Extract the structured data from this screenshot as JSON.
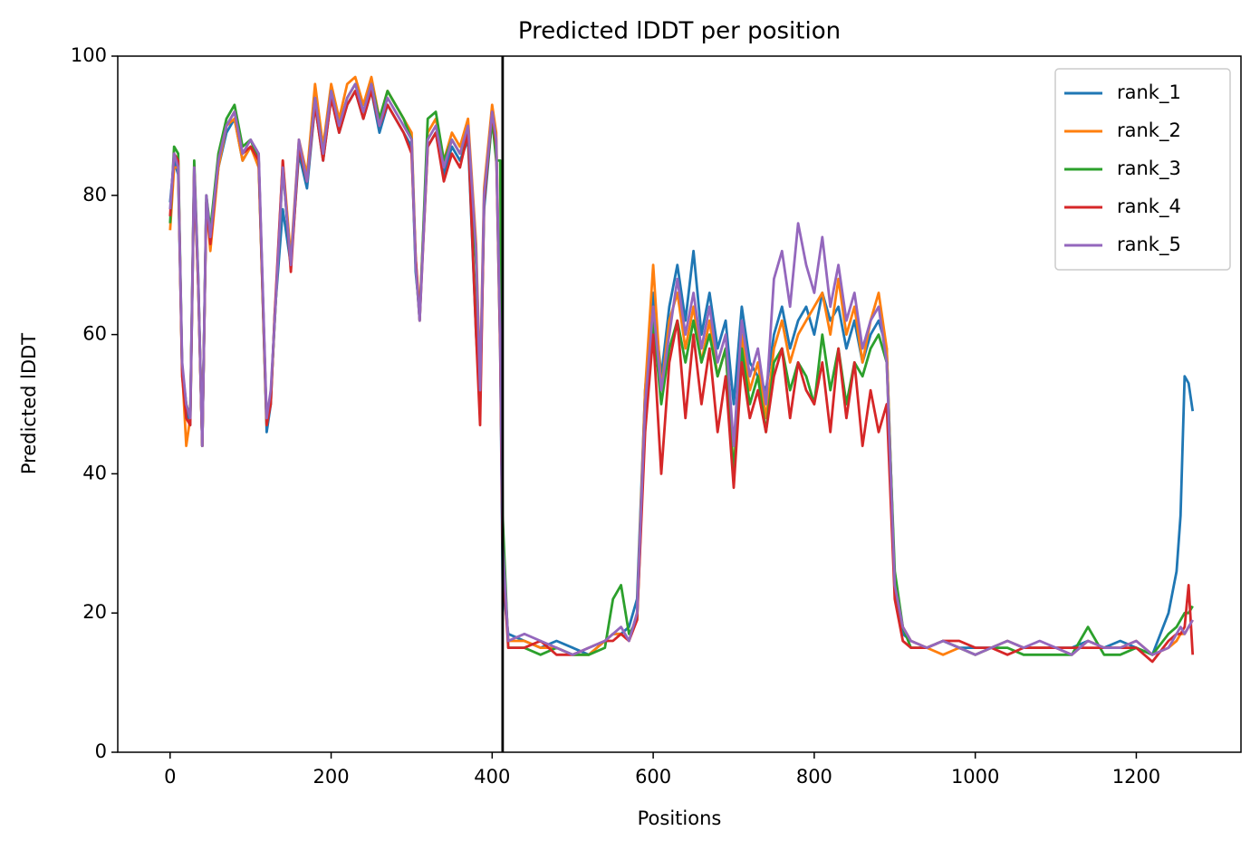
{
  "chart_data": {
    "type": "line",
    "title": "Predicted lDDT per position",
    "x_label": "Positions",
    "y_label": "Predicted lDDT",
    "xlim": [
      -65,
      1330
    ],
    "ylim": [
      0,
      100
    ],
    "xticks": [
      0,
      200,
      400,
      600,
      800,
      1000,
      1200
    ],
    "yticks": [
      0,
      20,
      40,
      60,
      80,
      100
    ],
    "legend": "upper right",
    "grid": false,
    "vline": 413,
    "vline_color": "#000000",
    "x": [
      0,
      5,
      10,
      15,
      20,
      25,
      30,
      35,
      40,
      45,
      50,
      60,
      70,
      80,
      90,
      100,
      110,
      120,
      125,
      130,
      140,
      150,
      160,
      170,
      180,
      190,
      200,
      210,
      220,
      230,
      240,
      250,
      260,
      270,
      280,
      290,
      300,
      305,
      310,
      320,
      330,
      340,
      350,
      360,
      370,
      380,
      385,
      390,
      400,
      405,
      410,
      413,
      420,
      440,
      460,
      480,
      500,
      520,
      540,
      550,
      560,
      570,
      580,
      590,
      600,
      610,
      620,
      630,
      640,
      650,
      660,
      670,
      680,
      690,
      700,
      710,
      720,
      730,
      740,
      750,
      760,
      770,
      780,
      790,
      800,
      810,
      820,
      830,
      840,
      850,
      860,
      870,
      880,
      890,
      900,
      910,
      920,
      940,
      960,
      980,
      1000,
      1020,
      1040,
      1060,
      1080,
      1100,
      1120,
      1140,
      1160,
      1180,
      1200,
      1220,
      1240,
      1250,
      1255,
      1260,
      1265,
      1270
    ],
    "series": [
      {
        "name": "rank_1",
        "color": "#1f77b4",
        "values": [
          79,
          85,
          83,
          55,
          49,
          47,
          83,
          67,
          44,
          79,
          73,
          84,
          89,
          91,
          85,
          87,
          85,
          46,
          50,
          63,
          78,
          70,
          86,
          81,
          93,
          85,
          94,
          89,
          93,
          95,
          91,
          95,
          89,
          93,
          91,
          89,
          87,
          69,
          63,
          87,
          89,
          83,
          87,
          85,
          88,
          60,
          50,
          78,
          91,
          87,
          58,
          24,
          17,
          16,
          15,
          16,
          15,
          14,
          16,
          17,
          17,
          18,
          22,
          52,
          66,
          54,
          64,
          70,
          62,
          72,
          60,
          66,
          58,
          62,
          50,
          64,
          56,
          54,
          52,
          60,
          64,
          58,
          62,
          64,
          60,
          66,
          62,
          64,
          58,
          62,
          56,
          60,
          62,
          58,
          24,
          17,
          16,
          15,
          16,
          15,
          15,
          15,
          16,
          15,
          15,
          15,
          15,
          16,
          15,
          16,
          15,
          14,
          20,
          26,
          34,
          54,
          53,
          49
        ]
      },
      {
        "name": "rank_2",
        "color": "#ff7f0e",
        "values": [
          75,
          84,
          84,
          55,
          44,
          48,
          83,
          67,
          44,
          79,
          72,
          84,
          90,
          91,
          85,
          87,
          84,
          47,
          51,
          62,
          85,
          71,
          88,
          83,
          96,
          87,
          96,
          91,
          96,
          97,
          93,
          97,
          91,
          95,
          93,
          91,
          89,
          71,
          63,
          89,
          91,
          85,
          89,
          87,
          91,
          73,
          53,
          81,
          93,
          89,
          60,
          30,
          16,
          16,
          15,
          15,
          14,
          14,
          16,
          17,
          17,
          16,
          20,
          52,
          70,
          52,
          62,
          66,
          58,
          64,
          56,
          62,
          54,
          58,
          40,
          60,
          52,
          56,
          48,
          58,
          62,
          56,
          60,
          62,
          64,
          66,
          60,
          68,
          60,
          64,
          56,
          62,
          66,
          58,
          24,
          18,
          16,
          15,
          14,
          15,
          14,
          15,
          16,
          15,
          15,
          15,
          14,
          16,
          15,
          15,
          16,
          14,
          15,
          16,
          17,
          17,
          18,
          19
        ]
      },
      {
        "name": "rank_3",
        "color": "#2ca02c",
        "values": [
          76,
          87,
          86,
          55,
          50,
          48,
          85,
          68,
          44,
          80,
          75,
          86,
          91,
          93,
          87,
          88,
          85,
          47,
          51,
          62,
          84,
          70,
          87,
          82,
          94,
          86,
          95,
          90,
          94,
          96,
          92,
          96,
          91,
          95,
          93,
          91,
          88,
          70,
          62,
          91,
          92,
          85,
          88,
          86,
          89,
          70,
          50,
          79,
          91,
          85,
          85,
          34,
          15,
          15,
          14,
          15,
          14,
          14,
          15,
          22,
          24,
          17,
          19,
          48,
          62,
          50,
          58,
          62,
          56,
          62,
          56,
          60,
          54,
          58,
          40,
          58,
          50,
          54,
          46,
          56,
          58,
          52,
          56,
          54,
          50,
          60,
          52,
          58,
          50,
          56,
          54,
          58,
          60,
          56,
          26,
          18,
          15,
          15,
          16,
          15,
          14,
          15,
          15,
          14,
          14,
          14,
          14,
          18,
          14,
          14,
          15,
          14,
          17,
          18,
          19,
          20,
          20,
          21
        ]
      },
      {
        "name": "rank_4",
        "color": "#d62728",
        "values": [
          77,
          86,
          85,
          54,
          48,
          47,
          84,
          67,
          44,
          79,
          73,
          85,
          90,
          92,
          86,
          87,
          85,
          47,
          50,
          63,
          85,
          69,
          87,
          82,
          93,
          85,
          94,
          89,
          93,
          95,
          91,
          95,
          90,
          93,
          91,
          89,
          86,
          71,
          62,
          87,
          89,
          82,
          86,
          84,
          89,
          60,
          47,
          79,
          92,
          87,
          58,
          28,
          15,
          15,
          16,
          14,
          14,
          15,
          16,
          16,
          17,
          16,
          19,
          46,
          60,
          40,
          56,
          62,
          48,
          60,
          50,
          58,
          46,
          54,
          38,
          56,
          48,
          52,
          46,
          54,
          58,
          48,
          56,
          52,
          50,
          56,
          46,
          58,
          48,
          56,
          44,
          52,
          46,
          50,
          22,
          16,
          15,
          15,
          16,
          16,
          15,
          15,
          14,
          15,
          15,
          15,
          15,
          15,
          15,
          15,
          15,
          13,
          16,
          17,
          17,
          18,
          24,
          14
        ]
      },
      {
        "name": "rank_5",
        "color": "#9467bd",
        "values": [
          78,
          86,
          84,
          56,
          50,
          48,
          84,
          68,
          44,
          80,
          74,
          85,
          90,
          92,
          86,
          88,
          86,
          48,
          52,
          62,
          84,
          70,
          88,
          82,
          94,
          86,
          95,
          90,
          94,
          96,
          92,
          96,
          90,
          94,
          92,
          90,
          88,
          70,
          62,
          88,
          90,
          84,
          88,
          86,
          90,
          72,
          52,
          80,
          92,
          88,
          60,
          30,
          16,
          17,
          16,
          15,
          14,
          15,
          16,
          17,
          18,
          16,
          20,
          50,
          64,
          52,
          60,
          68,
          60,
          66,
          58,
          64,
          56,
          60,
          44,
          62,
          54,
          58,
          50,
          68,
          72,
          64,
          76,
          70,
          66,
          74,
          64,
          70,
          62,
          66,
          58,
          62,
          64,
          56,
          24,
          18,
          16,
          15,
          16,
          15,
          14,
          15,
          16,
          15,
          16,
          15,
          14,
          16,
          15,
          15,
          16,
          14,
          15,
          17,
          18,
          17,
          18,
          19
        ]
      }
    ]
  }
}
